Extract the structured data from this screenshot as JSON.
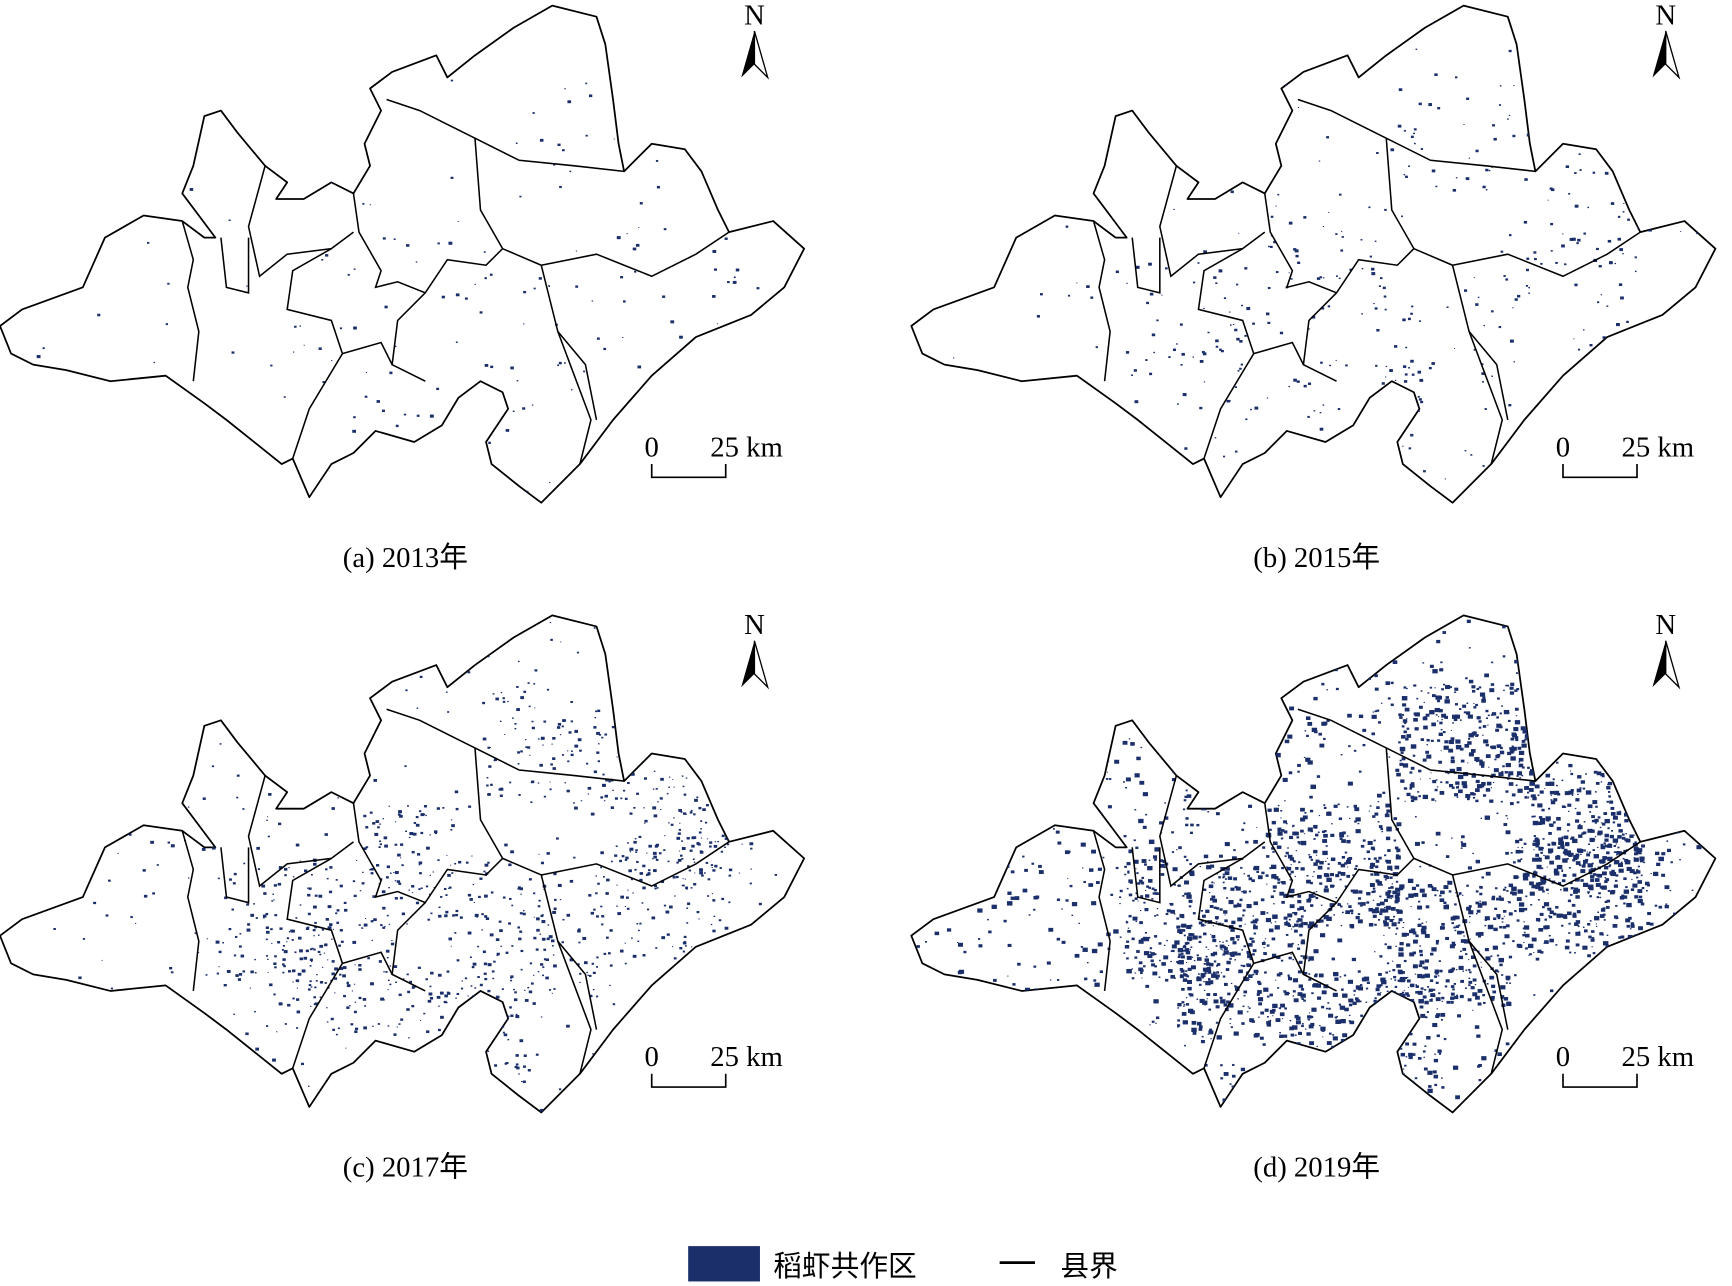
{
  "panels": [
    {
      "caption": "(a) 2013年",
      "north": "N",
      "scale_start": "0",
      "scale_end": "25 km"
    },
    {
      "caption": "(b) 2015年",
      "north": "N",
      "scale_start": "0",
      "scale_end": "25 km"
    },
    {
      "caption": "(c) 2017年",
      "north": "N",
      "scale_start": "0",
      "scale_end": "25 km"
    },
    {
      "caption": "(d) 2019年",
      "north": "N",
      "scale_start": "0",
      "scale_end": "25 km"
    }
  ],
  "legend": {
    "items": [
      {
        "label": "稻虾共作区",
        "color": "#1b2f6b"
      },
      {
        "label": "县界",
        "color": "#000000"
      }
    ]
  }
}
